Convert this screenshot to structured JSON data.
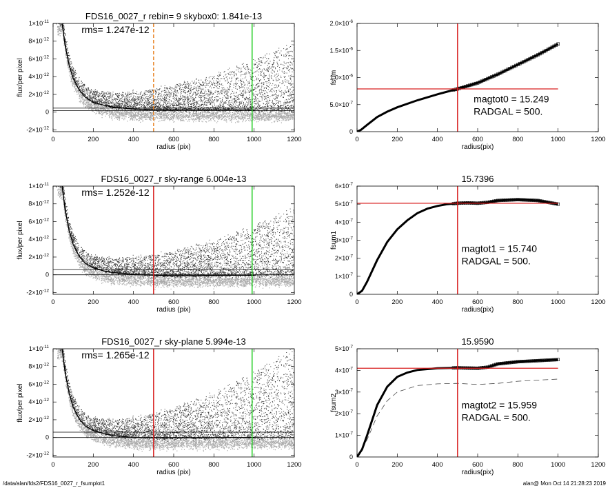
{
  "footer": {
    "left": "/data/alan/fds2/FDS16_0027_r_fsumplot1",
    "right": "alan@  Mon Oct 14 21:28:23 2019"
  },
  "colors": {
    "red": "#d81e1e",
    "green": "#22cc22",
    "orange": "#e8862a",
    "dark_points": "#333333",
    "light_points": "#aaaaaa"
  },
  "chart_data": [
    {
      "id": "flux1",
      "type": "scatter",
      "title": "FDS16_0027_r rebin= 9    skybox0:  1.841e-13",
      "annotation": "rms= 1.247e-12",
      "xlabel": "radius (pix)",
      "ylabel": "flux/per pixel",
      "xlim": [
        0,
        1200
      ],
      "ylim": [
        -2.2e-12,
        1e-11
      ],
      "xticks": [
        0,
        200,
        400,
        600,
        800,
        1000,
        1200
      ],
      "yticks": [
        {
          "v": -2e-12,
          "m": "-2×10",
          "e": "-12"
        },
        {
          "v": 0,
          "m": "0",
          "e": ""
        },
        {
          "v": 2e-12,
          "m": "2×10",
          "e": "-12"
        },
        {
          "v": 4e-12,
          "m": "4×10",
          "e": "-12"
        },
        {
          "v": 6e-12,
          "m": "6×10",
          "e": "-12"
        },
        {
          "v": 8e-12,
          "m": "8×10",
          "e": "-12"
        },
        {
          "v": 1e-11,
          "m": "1×10",
          "e": "-11"
        }
      ],
      "vlines": [
        {
          "x": 500,
          "color": "#e8862a",
          "dash": true
        },
        {
          "x": 990,
          "color": "#22cc22",
          "dash": false
        }
      ],
      "hlines": [
        1.8e-13,
        4.5e-13
      ],
      "profile": [
        [
          45,
          1e-11
        ],
        [
          60,
          7.5e-12
        ],
        [
          80,
          5.3e-12
        ],
        [
          100,
          3.8e-12
        ],
        [
          130,
          2.5e-12
        ],
        [
          160,
          1.7e-12
        ],
        [
          200,
          1.1e-12
        ],
        [
          250,
          8e-13
        ],
        [
          300,
          5.5e-13
        ],
        [
          400,
          3.5e-13
        ],
        [
          500,
          2.8e-13
        ],
        [
          600,
          2.6e-13
        ],
        [
          700,
          2.5e-13
        ],
        [
          900,
          2.5e-13
        ],
        [
          1000,
          2.5e-13
        ]
      ]
    },
    {
      "id": "flux2",
      "type": "scatter",
      "title": "FDS16_0027_r sky-range  6.004e-13",
      "annotation": "rms= 1.252e-12",
      "xlabel": "radius (pix)",
      "ylabel": "flux/per pixel",
      "xlim": [
        0,
        1200
      ],
      "ylim": [
        -2.2e-12,
        1e-11
      ],
      "xticks": [
        0,
        200,
        400,
        600,
        800,
        1000,
        1200
      ],
      "yticks": [
        {
          "v": -2e-12,
          "m": "-2×10",
          "e": "-12"
        },
        {
          "v": 0,
          "m": "0",
          "e": ""
        },
        {
          "v": 2e-12,
          "m": "2×10",
          "e": "-12"
        },
        {
          "v": 4e-12,
          "m": "4×10",
          "e": "-12"
        },
        {
          "v": 6e-12,
          "m": "6×10",
          "e": "-12"
        },
        {
          "v": 8e-12,
          "m": "8×10",
          "e": "-12"
        },
        {
          "v": 1e-11,
          "m": "1×10",
          "e": "-11"
        }
      ],
      "vlines": [
        {
          "x": 500,
          "color": "#d81e1e",
          "dash": false
        },
        {
          "x": 990,
          "color": "#22cc22",
          "dash": false
        }
      ],
      "hlines": [
        0.0,
        6e-13
      ],
      "profile": [
        [
          45,
          1e-11
        ],
        [
          60,
          7.3e-12
        ],
        [
          80,
          5e-12
        ],
        [
          100,
          3.4e-12
        ],
        [
          130,
          2.1e-12
        ],
        [
          160,
          1.3e-12
        ],
        [
          200,
          8e-13
        ],
        [
          250,
          4.5e-13
        ],
        [
          300,
          2.5e-13
        ],
        [
          400,
          5e-14
        ],
        [
          500,
          -5e-14
        ],
        [
          600,
          -1e-13
        ],
        [
          700,
          -1e-13
        ],
        [
          900,
          -5e-14
        ],
        [
          1000,
          -5e-14
        ]
      ]
    },
    {
      "id": "flux3",
      "type": "scatter",
      "title": "FDS16_0027_r sky-plane  5.994e-13",
      "annotation": "rms= 1.265e-12",
      "xlabel": "radius (pix)",
      "ylabel": "flux/per pixel",
      "xlim": [
        0,
        1200
      ],
      "ylim": [
        -2.2e-12,
        1e-11
      ],
      "xticks": [
        0,
        200,
        400,
        600,
        800,
        1000,
        1200
      ],
      "yticks": [
        {
          "v": -2e-12,
          "m": "-2×10",
          "e": "-12"
        },
        {
          "v": 0,
          "m": "0",
          "e": ""
        },
        {
          "v": 2e-12,
          "m": "2×10",
          "e": "-12"
        },
        {
          "v": 4e-12,
          "m": "4×10",
          "e": "-12"
        },
        {
          "v": 6e-12,
          "m": "6×10",
          "e": "-12"
        },
        {
          "v": 8e-12,
          "m": "8×10",
          "e": "-12"
        },
        {
          "v": 1e-11,
          "m": "1×10",
          "e": "-11"
        }
      ],
      "vlines": [
        {
          "x": 500,
          "color": "#d81e1e",
          "dash": false
        },
        {
          "x": 990,
          "color": "#22cc22",
          "dash": false
        }
      ],
      "hlines": [
        0.0,
        6e-13
      ],
      "profile": [
        [
          45,
          1e-11
        ],
        [
          60,
          7.3e-12
        ],
        [
          80,
          5e-12
        ],
        [
          100,
          3.4e-12
        ],
        [
          130,
          2.1e-12
        ],
        [
          160,
          1.3e-12
        ],
        [
          200,
          8e-13
        ],
        [
          250,
          4.5e-13
        ],
        [
          300,
          2e-13
        ],
        [
          400,
          0.0
        ],
        [
          500,
          -5e-14
        ],
        [
          600,
          -5e-14
        ],
        [
          700,
          -5e-14
        ],
        [
          900,
          0.0
        ],
        [
          1000,
          0.0
        ]
      ]
    },
    {
      "id": "fsum",
      "type": "line",
      "title": "",
      "annotation_lines": [
        "magtot0 =  15.249",
        "RADGAL =    500."
      ],
      "xlabel": "radius(pix)",
      "ylabel": "fsum",
      "xlim": [
        0,
        1200
      ],
      "ylim": [
        0,
        2e-06
      ],
      "xticks": [
        0,
        200,
        400,
        600,
        800,
        1000,
        1200
      ],
      "yticks": [
        {
          "v": 0,
          "m": "0",
          "e": ""
        },
        {
          "v": 5e-07,
          "m": "5.0×10",
          "e": "-7"
        },
        {
          "v": 1e-06,
          "m": "1.0×10",
          "e": "-6"
        },
        {
          "v": 1.5e-06,
          "m": "1.5×10",
          "e": "-6"
        },
        {
          "v": 2e-06,
          "m": "2.0×10",
          "e": "-6"
        }
      ],
      "vline": 500,
      "hline": 7.9e-07,
      "hline_xmax": 1000,
      "curve": [
        [
          0,
          0
        ],
        [
          20,
          3.5e-08
        ],
        [
          50,
          1.25e-07
        ],
        [
          100,
          2.7e-07
        ],
        [
          150,
          3.7e-07
        ],
        [
          200,
          4.5e-07
        ],
        [
          300,
          5.8e-07
        ],
        [
          400,
          6.9e-07
        ],
        [
          500,
          7.9e-07
        ],
        [
          600,
          9e-07
        ],
        [
          700,
          1.06e-06
        ],
        [
          800,
          1.24e-06
        ],
        [
          900,
          1.42e-06
        ],
        [
          1000,
          1.62e-06
        ]
      ],
      "dashed": []
    },
    {
      "id": "fsum1",
      "type": "line",
      "title": "15.7396",
      "annotation_lines": [
        "magtot1 =  15.740",
        "RADGAL =    500."
      ],
      "xlabel": "radius(pix)",
      "ylabel": "fsum1",
      "xlim": [
        0,
        1200
      ],
      "ylim": [
        0,
        6e-07
      ],
      "xticks": [
        0,
        200,
        400,
        600,
        800,
        1000,
        1200
      ],
      "yticks": [
        {
          "v": 0,
          "m": "0",
          "e": ""
        },
        {
          "v": 1e-07,
          "m": "1×10",
          "e": "-7"
        },
        {
          "v": 2e-07,
          "m": "2×10",
          "e": "-7"
        },
        {
          "v": 3e-07,
          "m": "3×10",
          "e": "-7"
        },
        {
          "v": 4e-07,
          "m": "4×10",
          "e": "-7"
        },
        {
          "v": 5e-07,
          "m": "5×10",
          "e": "-7"
        },
        {
          "v": 6e-07,
          "m": "6×10",
          "e": "-7"
        }
      ],
      "vline": 500,
      "hline": 5.05e-07,
      "hline_xmax": 1000,
      "curve": [
        [
          0,
          0
        ],
        [
          25,
          2e-08
        ],
        [
          50,
          7e-08
        ],
        [
          75,
          1.3e-07
        ],
        [
          100,
          1.9e-07
        ],
        [
          150,
          2.9e-07
        ],
        [
          200,
          3.6e-07
        ],
        [
          250,
          4.1e-07
        ],
        [
          300,
          4.5e-07
        ],
        [
          350,
          4.75e-07
        ],
        [
          400,
          4.9e-07
        ],
        [
          450,
          5e-07
        ],
        [
          500,
          5.05e-07
        ],
        [
          550,
          5.07e-07
        ],
        [
          600,
          5.05e-07
        ],
        [
          650,
          5.1e-07
        ],
        [
          700,
          5.2e-07
        ],
        [
          800,
          5.25e-07
        ],
        [
          900,
          5.2e-07
        ],
        [
          950,
          5.1e-07
        ],
        [
          1000,
          5e-07
        ]
      ],
      "dashed": []
    },
    {
      "id": "fsum2",
      "type": "line",
      "title": "15.9590",
      "annotation_lines": [
        "magtot2 =  15.959",
        "RADGAL =    500."
      ],
      "xlabel": "radius(pix)",
      "ylabel": "fsum2",
      "xlim": [
        0,
        1200
      ],
      "ylim": [
        0,
        5e-07
      ],
      "xticks": [
        0,
        200,
        400,
        600,
        800,
        1000,
        1200
      ],
      "yticks": [
        {
          "v": 0,
          "m": "0",
          "e": ""
        },
        {
          "v": 1e-07,
          "m": "1×10",
          "e": "-7"
        },
        {
          "v": 2e-07,
          "m": "2×10",
          "e": "-7"
        },
        {
          "v": 3e-07,
          "m": "3×10",
          "e": "-7"
        },
        {
          "v": 4e-07,
          "m": "4×10",
          "e": "-7"
        },
        {
          "v": 5e-07,
          "m": "5×10",
          "e": "-7"
        }
      ],
      "vline": 500,
      "hline": 4.1e-07,
      "hline_xmax": 1000,
      "curve": [
        [
          0,
          0
        ],
        [
          25,
          3.5e-08
        ],
        [
          50,
          1e-07
        ],
        [
          75,
          1.7e-07
        ],
        [
          100,
          2.4e-07
        ],
        [
          150,
          3.25e-07
        ],
        [
          200,
          3.7e-07
        ],
        [
          250,
          3.9e-07
        ],
        [
          300,
          4.02e-07
        ],
        [
          400,
          4.1e-07
        ],
        [
          500,
          4.12e-07
        ],
        [
          600,
          4.1e-07
        ],
        [
          650,
          4.15e-07
        ],
        [
          700,
          4.3e-07
        ],
        [
          800,
          4.4e-07
        ],
        [
          900,
          4.45e-07
        ],
        [
          1000,
          4.5e-07
        ]
      ],
      "dashed": [
        [
          0,
          0
        ],
        [
          50,
          8e-08
        ],
        [
          100,
          1.9e-07
        ],
        [
          150,
          2.6e-07
        ],
        [
          200,
          3e-07
        ],
        [
          300,
          3.3e-07
        ],
        [
          400,
          3.38e-07
        ],
        [
          500,
          3.4e-07
        ],
        [
          600,
          3.35e-07
        ],
        [
          700,
          3.4e-07
        ],
        [
          800,
          3.5e-07
        ],
        [
          900,
          3.55e-07
        ],
        [
          1000,
          3.6e-07
        ]
      ]
    }
  ]
}
